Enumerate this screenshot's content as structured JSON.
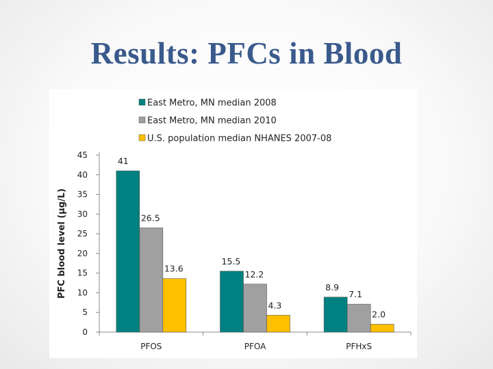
{
  "slide": {
    "title": "Results:  PFCs in Blood"
  },
  "chart_data": {
    "type": "bar",
    "title": "",
    "xlabel": "",
    "ylabel": "PFC blood level (µg/L)",
    "ylim": [
      0,
      45
    ],
    "yticks": [
      0,
      5,
      10,
      15,
      20,
      25,
      30,
      35,
      40,
      45
    ],
    "categories": [
      "PFOS",
      "PFOA",
      "PFHxS"
    ],
    "series": [
      {
        "name": "East Metro, MN median 2008",
        "color": "#008080",
        "values": [
          41,
          15.5,
          8.9
        ],
        "labels": [
          "41",
          "15.5",
          "8.9"
        ]
      },
      {
        "name": "East Metro, MN median 2010",
        "color": "#a0a0a0",
        "values": [
          26.5,
          12.2,
          7.1
        ],
        "labels": [
          "26.5",
          "12.2",
          "7.1"
        ]
      },
      {
        "name": "U.S. population median NHANES 2007-08",
        "color": "#ffc000",
        "values": [
          13.6,
          4.3,
          2.0
        ],
        "labels": [
          "13.6",
          "4.3",
          "2.0"
        ]
      }
    ],
    "legend_position": "top",
    "grid": false
  }
}
